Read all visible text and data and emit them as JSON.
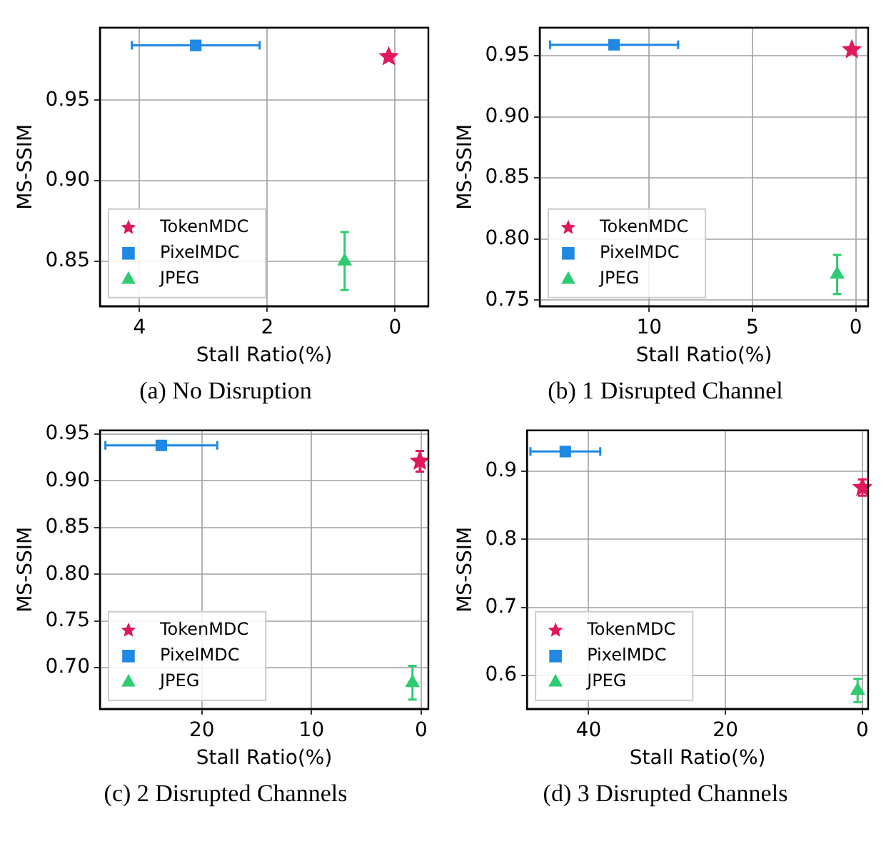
{
  "chart_data": [
    {
      "type": "scatter",
      "title": "(a) No Disruption",
      "xlabel": "Stall Ratio(%)",
      "ylabel": "MS-SSIM",
      "xlim": [
        4.62,
        -0.52
      ],
      "xticks": [
        4,
        2,
        0
      ],
      "ylim": [
        0.822,
        0.995
      ],
      "yticks": [
        {
          "value": 0.85,
          "label": "0.85"
        },
        {
          "value": 0.9,
          "label": "0.90"
        },
        {
          "value": 0.95,
          "label": "0.95"
        }
      ],
      "grid": true,
      "legend": "bottom left",
      "series": [
        {
          "name": "TokenMDC",
          "color": "#e0185c",
          "marker": "star",
          "x": [
            0.1
          ],
          "values": [
            0.977
          ]
        },
        {
          "name": "PixelMDC",
          "color": "#1f88e5",
          "marker": "square",
          "x": [
            3.12
          ],
          "values": [
            0.984
          ],
          "xerrors": [
            1.0
          ]
        },
        {
          "name": "JPEG",
          "color": "#2ecc71",
          "marker": "triangle",
          "x": [
            0.79
          ],
          "values": [
            0.85
          ],
          "errors": [
            0.018
          ]
        }
      ]
    },
    {
      "type": "scatter",
      "title": "(b) 1 Disrupted Channel",
      "xlabel": "Stall Ratio(%)",
      "ylabel": "MS-SSIM",
      "xlim": [
        15.3,
        -0.6
      ],
      "xticks": [
        10,
        5,
        0
      ],
      "ylim": [
        0.745,
        0.973
      ],
      "yticks": [
        {
          "value": 0.75,
          "label": "0.75"
        },
        {
          "value": 0.8,
          "label": "0.80"
        },
        {
          "value": 0.85,
          "label": "0.85"
        },
        {
          "value": 0.9,
          "label": "0.90"
        },
        {
          "value": 0.95,
          "label": "0.95"
        }
      ],
      "grid": true,
      "legend": "bottom left",
      "series": [
        {
          "name": "TokenMDC",
          "color": "#e0185c",
          "marker": "star",
          "x": [
            0.19
          ],
          "values": [
            0.955
          ]
        },
        {
          "name": "PixelMDC",
          "color": "#1f88e5",
          "marker": "square",
          "x": [
            11.7
          ],
          "values": [
            0.959
          ],
          "xerrors": [
            3.1
          ]
        },
        {
          "name": "JPEG",
          "color": "#2ecc71",
          "marker": "triangle",
          "x": [
            0.9
          ],
          "values": [
            0.771
          ],
          "errors": [
            0.016
          ]
        }
      ]
    },
    {
      "type": "scatter",
      "title": "(c) 2 Disrupted Channels",
      "xlabel": "Stall Ratio(%)",
      "ylabel": "MS-SSIM",
      "xlim": [
        29.3,
        -0.65
      ],
      "xticks": [
        20,
        10,
        0
      ],
      "ylim": [
        0.656,
        0.954
      ],
      "yticks": [
        {
          "value": 0.7,
          "label": "0.70"
        },
        0.75,
        {
          "value": 0.8,
          "label": "0.80"
        },
        0.85,
        {
          "value": 0.9,
          "label": "0.90"
        },
        0.95
      ],
      "grid": true,
      "legend": "bottom left",
      "series": [
        {
          "name": "TokenMDC",
          "color": "#e0185c",
          "marker": "star",
          "x": [
            0.13
          ],
          "values": [
            0.921
          ],
          "errors": [
            0.011
          ]
        },
        {
          "name": "PixelMDC",
          "color": "#1f88e5",
          "marker": "square",
          "x": [
            23.7
          ],
          "values": [
            0.938
          ],
          "xerrors": [
            5.1
          ]
        },
        {
          "name": "JPEG",
          "color": "#2ecc71",
          "marker": "triangle",
          "x": [
            0.8
          ],
          "values": [
            0.684
          ],
          "errors": [
            0.018
          ]
        }
      ]
    },
    {
      "type": "scatter",
      "title": "(d) 3 Disrupted Channels",
      "xlabel": "Stall Ratio(%)",
      "ylabel": "MS-SSIM",
      "xlim": [
        49.0,
        -0.84
      ],
      "xticks": [
        40,
        20,
        0
      ],
      "ylim": [
        0.551,
        0.96
      ],
      "yticks": [
        0.6,
        0.7,
        0.8,
        0.9
      ],
      "grid": true,
      "legend": "bottom left",
      "series": [
        {
          "name": "TokenMDC",
          "color": "#e0185c",
          "marker": "star",
          "x": [
            0
          ],
          "values": [
            0.876
          ],
          "errors": [
            0.012
          ]
        },
        {
          "name": "PixelMDC",
          "color": "#1f88e5",
          "marker": "square",
          "x": [
            43.4
          ],
          "values": [
            0.929
          ],
          "xerrors": [
            5.1
          ]
        },
        {
          "name": "JPEG",
          "color": "#2ecc71",
          "marker": "triangle",
          "x": [
            0.7
          ],
          "values": [
            0.578
          ],
          "errors": [
            0.017
          ]
        }
      ]
    }
  ]
}
